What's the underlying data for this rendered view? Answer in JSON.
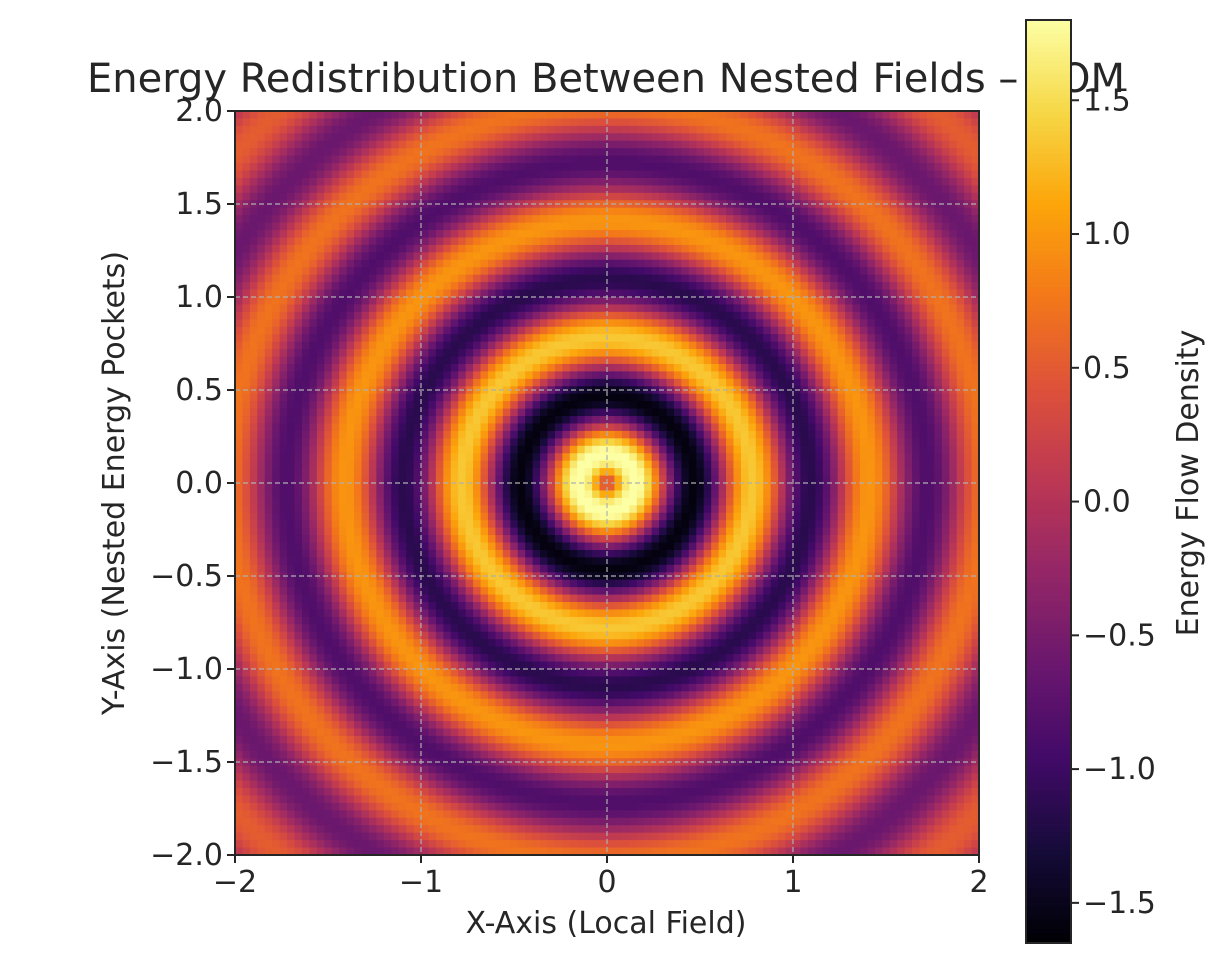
{
  "chart_data": {
    "type": "heatmap",
    "title": "Energy Redistribution Between Nested Fields – COM",
    "xlabel": "X-Axis (Local Field)",
    "ylabel": "Y-Axis (Nested Energy Pockets)",
    "xlim": [
      -2,
      2
    ],
    "ylim": [
      -2,
      2
    ],
    "x_ticks": [
      -2,
      -1,
      0,
      1,
      2
    ],
    "x_tick_labels": [
      "−2",
      "−1",
      "0",
      "1",
      "2"
    ],
    "y_ticks": [
      2.0,
      1.5,
      1.0,
      0.5,
      0.0,
      -0.5,
      -1.0,
      -1.5,
      -2.0
    ],
    "y_tick_labels": [
      "2.0",
      "1.5",
      "1.0",
      "0.5",
      "0.0",
      "−0.5",
      "−1.0",
      "−1.5",
      "−2.0"
    ],
    "grid": true,
    "grid_values": {
      "resolution": 100,
      "description_function": "sin(10·r)·exp(−r/2)·2 at r = sqrt(x²+y²)"
    },
    "colormap": "inferno",
    "colorbar": {
      "label": "Energy Flow Density",
      "range": [
        -1.65,
        1.8
      ],
      "ticks": [
        1.5,
        1.0,
        0.5,
        0.0,
        -0.5,
        -1.0,
        -1.5
      ],
      "tick_labels": [
        "1.5",
        "1.0",
        "0.5",
        "0.0",
        "−0.5",
        "−1.0",
        "−1.5"
      ]
    }
  }
}
